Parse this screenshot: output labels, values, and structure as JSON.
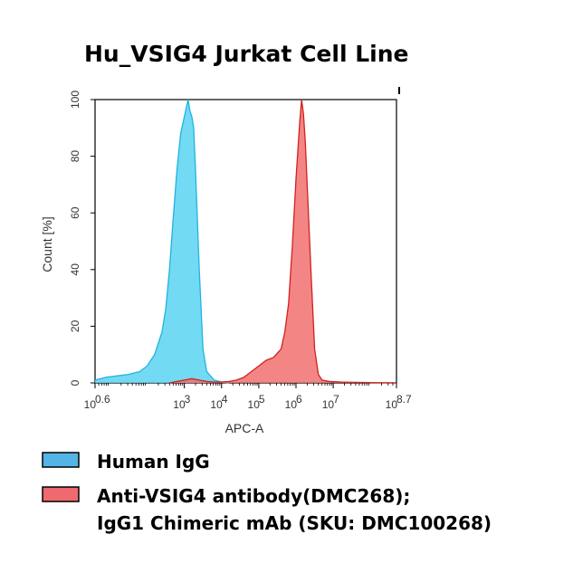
{
  "chart_data": {
    "type": "area",
    "title": "Hu_VSIG4 Jurkat Cell Line",
    "xlabel": "APC-A",
    "ylabel": "Count [%]",
    "x_scale": "log10",
    "xlim_exponent": [
      0.6,
      8.7
    ],
    "ylim": [
      0,
      100
    ],
    "x_ticks": [
      {
        "base": "10",
        "exp": "0.6",
        "value": 0.6
      },
      {
        "base": "10",
        "exp": "3",
        "value": 3
      },
      {
        "base": "10",
        "exp": "4",
        "value": 4
      },
      {
        "base": "10",
        "exp": "5",
        "value": 5
      },
      {
        "base": "10",
        "exp": "6",
        "value": 6
      },
      {
        "base": "10",
        "exp": "7",
        "value": 7
      },
      {
        "base": "10",
        "exp": "8.7",
        "value": 8.7
      }
    ],
    "y_ticks": [
      "0",
      "20",
      "40",
      "60",
      "80",
      "100"
    ],
    "y_tick_values": [
      0,
      20,
      40,
      60,
      80,
      100
    ],
    "grid": false,
    "legend_position": "below",
    "series": [
      {
        "name": "Human IgG",
        "fill": "#5BD3F2",
        "stroke": "#1FB3E0",
        "legend_color": "#55B4E6",
        "points": [
          [
            0.6,
            1
          ],
          [
            0.9,
            2
          ],
          [
            1.2,
            2.5
          ],
          [
            1.5,
            3
          ],
          [
            1.8,
            4
          ],
          [
            2.0,
            6
          ],
          [
            2.2,
            10
          ],
          [
            2.4,
            18
          ],
          [
            2.5,
            26
          ],
          [
            2.6,
            40
          ],
          [
            2.7,
            58
          ],
          [
            2.8,
            75
          ],
          [
            2.9,
            88
          ],
          [
            3.0,
            94
          ],
          [
            3.05,
            97
          ],
          [
            3.1,
            100
          ],
          [
            3.15,
            96
          ],
          [
            3.2,
            94
          ],
          [
            3.25,
            90
          ],
          [
            3.3,
            75
          ],
          [
            3.4,
            40
          ],
          [
            3.5,
            12
          ],
          [
            3.6,
            4
          ],
          [
            3.8,
            1
          ],
          [
            4.0,
            0.3
          ],
          [
            4.2,
            0
          ]
        ]
      },
      {
        "name": "Anti-VSIG4 antibody(DMC268); IgG1 Chimeric mAb (SKU: DMC100268)",
        "fill": "#F17070",
        "stroke": "#D42020",
        "legend_color": "#EE6A6E",
        "points": [
          [
            2.6,
            0
          ],
          [
            2.8,
            0.5
          ],
          [
            3.0,
            1
          ],
          [
            3.2,
            1.5
          ],
          [
            3.4,
            1
          ],
          [
            3.6,
            0.5
          ],
          [
            3.8,
            0.3
          ],
          [
            4.0,
            0.3
          ],
          [
            4.2,
            0.5
          ],
          [
            4.4,
            1
          ],
          [
            4.6,
            2
          ],
          [
            4.8,
            4
          ],
          [
            5.0,
            6
          ],
          [
            5.2,
            8
          ],
          [
            5.4,
            9
          ],
          [
            5.6,
            12
          ],
          [
            5.7,
            18
          ],
          [
            5.8,
            28
          ],
          [
            5.9,
            48
          ],
          [
            6.0,
            72
          ],
          [
            6.1,
            92
          ],
          [
            6.15,
            100
          ],
          [
            6.2,
            95
          ],
          [
            6.25,
            85
          ],
          [
            6.3,
            70
          ],
          [
            6.4,
            40
          ],
          [
            6.5,
            12
          ],
          [
            6.6,
            3
          ],
          [
            6.7,
            1
          ],
          [
            6.9,
            0.5
          ],
          [
            7.2,
            0.3
          ],
          [
            7.6,
            0.2
          ],
          [
            8.0,
            0.1
          ],
          [
            8.7,
            0
          ]
        ]
      }
    ]
  },
  "legend": {
    "items": [
      {
        "lines": [
          "Human IgG"
        ],
        "color": "#55B4E6"
      },
      {
        "lines": [
          "Anti-VSIG4 antibody(DMC268);",
          "IgG1 Chimeric mAb (SKU: DMC100268)"
        ],
        "color": "#EE6A6E"
      }
    ]
  }
}
